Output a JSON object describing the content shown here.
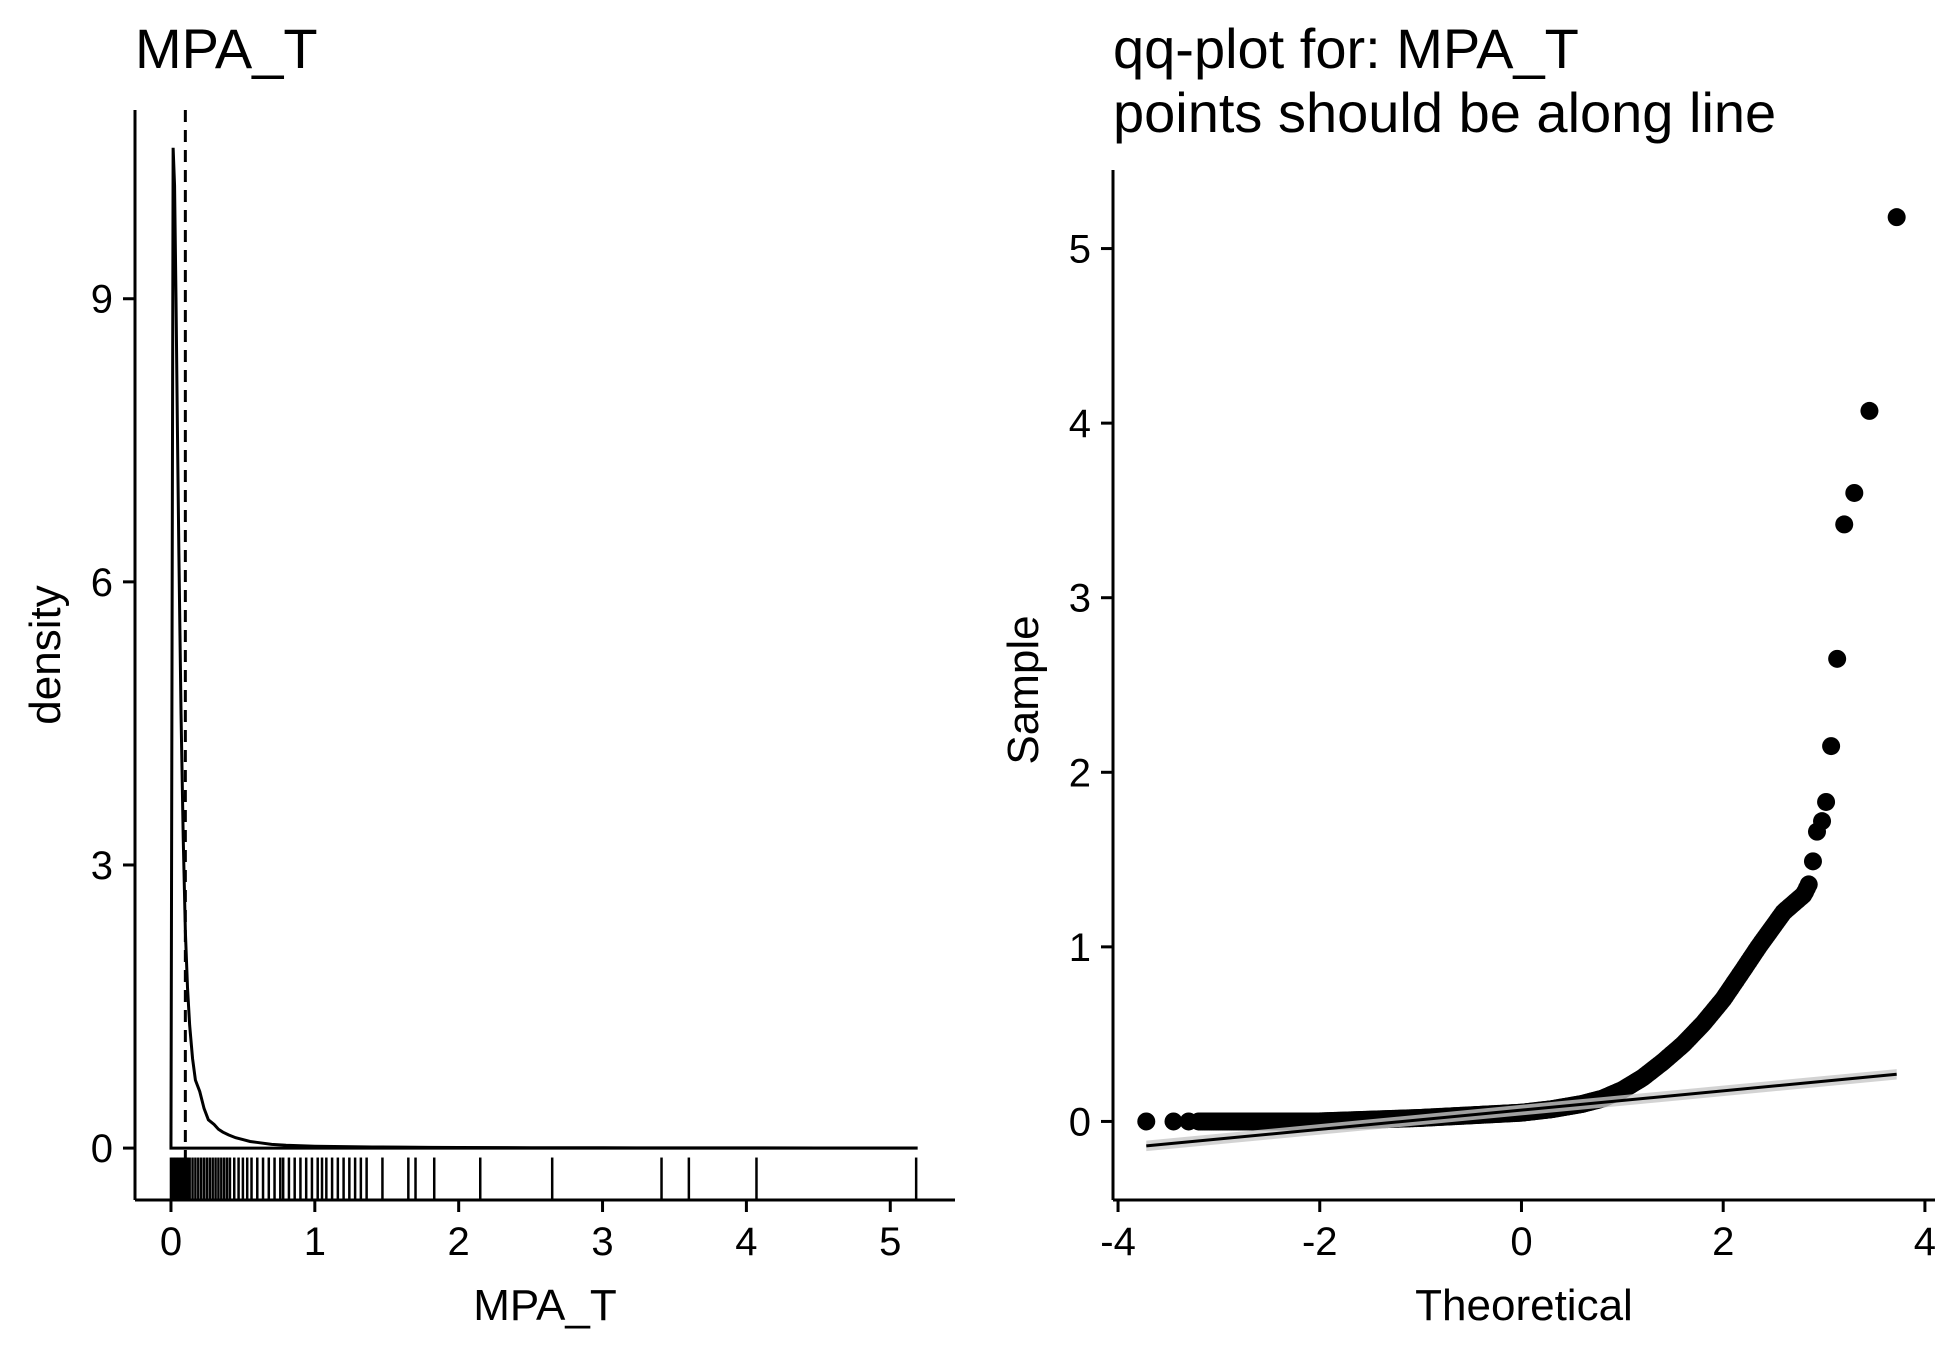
{
  "chart_data": [
    {
      "type": "area",
      "title": "MPA_T",
      "xlabel": "MPA_T",
      "ylabel": "density",
      "xlim": [
        -0.25,
        5.45
      ],
      "ylim": [
        -0.55,
        11.0
      ],
      "x_ticks": [
        0,
        1,
        2,
        3,
        4,
        5
      ],
      "x_tick_labels": [
        "0",
        "1",
        "2",
        "3",
        "4",
        "5"
      ],
      "y_ticks": [
        0,
        3,
        6,
        9
      ],
      "y_tick_labels": [
        "0",
        "3",
        "6",
        "9"
      ],
      "vline_x": 0.1,
      "series": [
        {
          "name": "density",
          "x": [
            0.0,
            0.015,
            0.025,
            0.035,
            0.045,
            0.055,
            0.07,
            0.085,
            0.1,
            0.115,
            0.13,
            0.15,
            0.17,
            0.2,
            0.23,
            0.26,
            0.3,
            0.33,
            0.36,
            0.4,
            0.45,
            0.5,
            0.55,
            0.6,
            0.7,
            0.8,
            0.9,
            1.0,
            1.2,
            1.4,
            1.6,
            1.8,
            2.0,
            2.5,
            3.0,
            3.5,
            4.0,
            4.5,
            5.0,
            5.18
          ],
          "y": [
            0.0,
            10.6,
            10.2,
            9.0,
            7.6,
            6.3,
            4.6,
            3.3,
            2.3,
            1.7,
            1.3,
            0.95,
            0.72,
            0.6,
            0.42,
            0.3,
            0.25,
            0.2,
            0.17,
            0.14,
            0.11,
            0.09,
            0.07,
            0.06,
            0.04,
            0.03,
            0.025,
            0.02,
            0.015,
            0.012,
            0.01,
            0.008,
            0.006,
            0.004,
            0.003,
            0.002,
            0.002,
            0.001,
            0.001,
            0.001
          ]
        }
      ],
      "rug": [
        0.0,
        0.01,
        0.02,
        0.03,
        0.04,
        0.05,
        0.06,
        0.07,
        0.08,
        0.09,
        0.1,
        0.11,
        0.12,
        0.13,
        0.15,
        0.17,
        0.19,
        0.21,
        0.23,
        0.25,
        0.27,
        0.29,
        0.31,
        0.33,
        0.35,
        0.37,
        0.39,
        0.41,
        0.44,
        0.47,
        0.5,
        0.53,
        0.56,
        0.6,
        0.64,
        0.68,
        0.72,
        0.76,
        0.78,
        0.82,
        0.86,
        0.9,
        0.94,
        0.98,
        1.02,
        1.05,
        1.08,
        1.12,
        1.16,
        1.2,
        1.24,
        1.28,
        1.32,
        1.36,
        1.47,
        1.65,
        1.7,
        1.83,
        2.15,
        2.65,
        3.41,
        3.6,
        4.07,
        5.18
      ]
    },
    {
      "type": "scatter",
      "title": "qq-plot for: MPA_T",
      "subtitle": "points should be along line",
      "xlabel": "Theoretical",
      "ylabel": "Sample",
      "xlim": [
        -4.05,
        4.1
      ],
      "ylim": [
        -0.45,
        5.45
      ],
      "x_ticks": [
        -4,
        -2,
        0,
        2,
        4
      ],
      "x_tick_labels": [
        "-4",
        "-2",
        "0",
        "2",
        "4"
      ],
      "y_ticks": [
        0,
        1,
        2,
        3,
        4,
        5
      ],
      "y_tick_labels": [
        "0",
        "1",
        "2",
        "3",
        "4",
        "5"
      ],
      "reference_line": {
        "x": [
          -3.72,
          3.72
        ],
        "y": [
          -0.14,
          0.27
        ]
      },
      "highlight_points": {
        "x": [
          3.72,
          3.45,
          3.3,
          3.2,
          3.13,
          3.07,
          3.02,
          2.98,
          2.93,
          2.89
        ],
        "y": [
          5.18,
          4.07,
          3.6,
          3.42,
          2.65,
          2.15,
          1.83,
          1.72,
          1.66,
          1.49
        ]
      },
      "qq_curve": {
        "x": [
          -3.72,
          -3.45,
          -3.3,
          -3.0,
          -2.5,
          -2.0,
          -1.5,
          -1.0,
          -0.5,
          0.0,
          0.3,
          0.6,
          0.8,
          1.0,
          1.2,
          1.4,
          1.6,
          1.8,
          2.0,
          2.2,
          2.35,
          2.5,
          2.6,
          2.7,
          2.8,
          2.85
        ],
        "y": [
          0.0,
          0.0,
          0.0,
          0.0,
          0.0,
          0.0,
          0.01,
          0.02,
          0.035,
          0.05,
          0.07,
          0.1,
          0.13,
          0.18,
          0.25,
          0.34,
          0.44,
          0.56,
          0.7,
          0.87,
          1.0,
          1.12,
          1.2,
          1.25,
          1.3,
          1.36
        ]
      }
    }
  ]
}
